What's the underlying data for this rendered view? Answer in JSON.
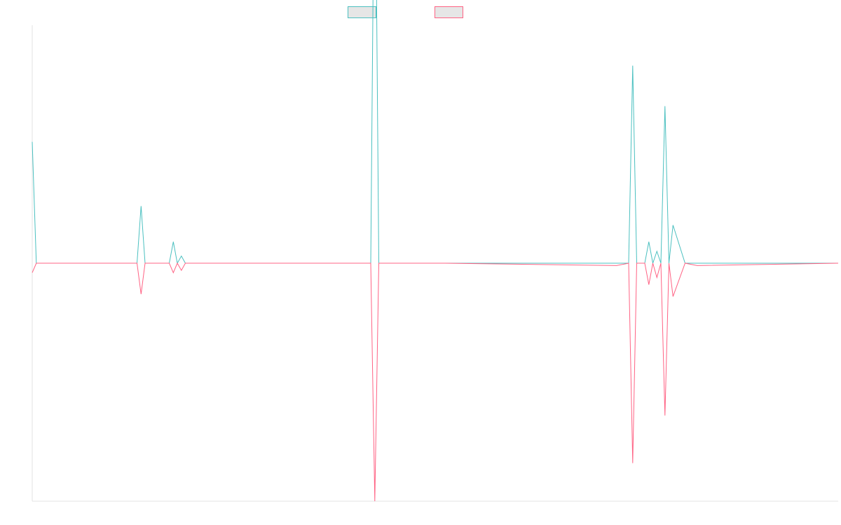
{
  "chart_data": {
    "type": "line",
    "title": "",
    "xlabel": "",
    "ylabel": "",
    "grid": false,
    "legend_position": "top-center",
    "ylim": [
      -10,
      10
    ],
    "x": [
      0,
      0.5,
      13,
      13.5,
      14,
      17,
      17.5,
      18,
      18.5,
      19,
      42,
      42.5,
      43,
      51,
      72.5,
      74,
      74.5,
      75,
      76,
      76.5,
      77,
      77.5,
      78,
      78.5,
      79,
      79.5,
      81,
      82.5,
      100
    ],
    "series": [
      {
        "color": "#4bc0c0",
        "values": [
          5.1,
          0,
          0,
          2.4,
          0,
          0,
          0.9,
          0,
          0.3,
          0,
          0,
          20,
          0,
          0,
          0,
          0,
          8.3,
          0,
          0,
          0.9,
          0,
          0.5,
          0,
          6.6,
          0,
          1.6,
          0,
          0,
          0
        ]
      },
      {
        "color": "#ff6384",
        "values": [
          -0.4,
          0,
          0,
          -1.3,
          0,
          0,
          -0.4,
          0,
          -0.3,
          0,
          0,
          -10,
          0,
          0,
          -0.1,
          0,
          -8.4,
          0,
          0,
          -0.9,
          0,
          -0.6,
          0,
          -6.4,
          0,
          -1.4,
          0,
          -0.1,
          0
        ]
      }
    ]
  },
  "legend": {
    "items": [
      {
        "fill": "#e6e6e6",
        "stroke": "#4bc0c0"
      },
      {
        "fill": "#e6e6e6",
        "stroke": "#ff6384"
      }
    ]
  }
}
